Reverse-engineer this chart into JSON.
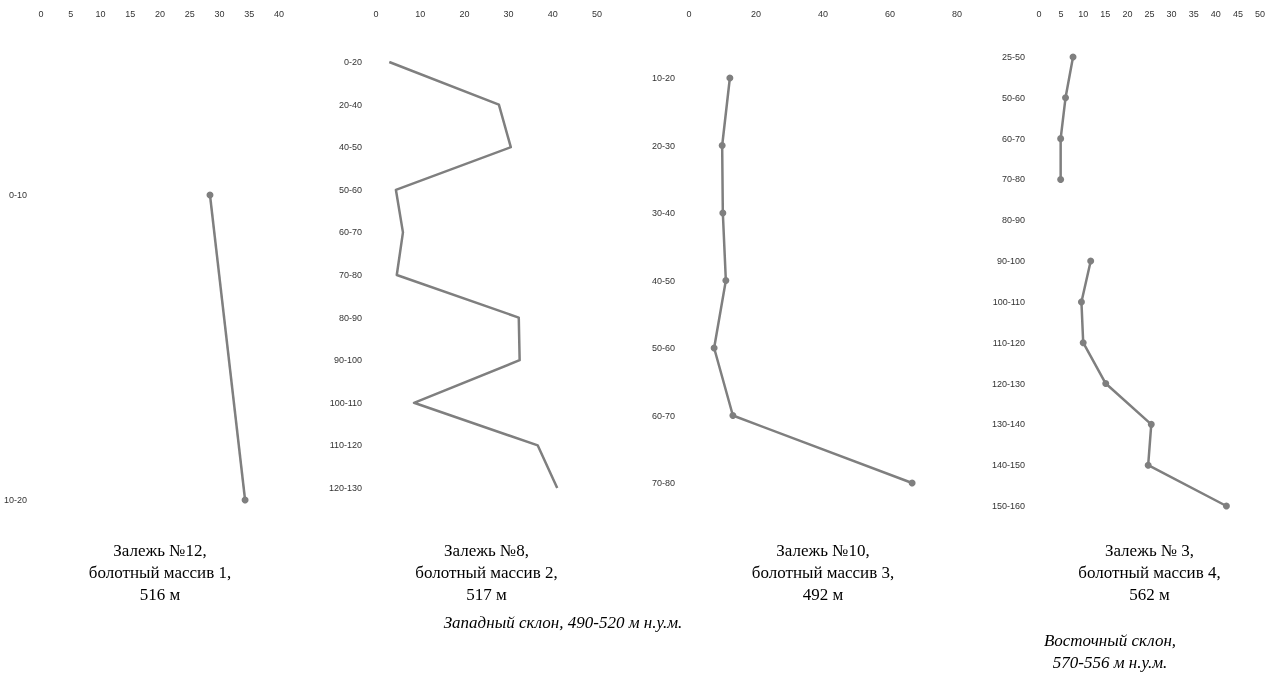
{
  "chart_data": [
    {
      "type": "line",
      "orientation": "horizontal",
      "categories": [
        "0-10",
        "10-20"
      ],
      "values": [
        28.4,
        34.3
      ],
      "color": "#7f7f7f",
      "marker": "circle",
      "xlim": [
        0,
        40
      ],
      "xticks": [
        0,
        5,
        10,
        15,
        20,
        25,
        30,
        35,
        40
      ],
      "xlabel": "Залежь №12,\nболотный массив 1,\n516 м"
    },
    {
      "type": "line",
      "orientation": "horizontal",
      "categories": [
        "0-20",
        "20-40",
        "40-50",
        "50-60",
        "60-70",
        "70-80",
        "80-90",
        "90-100",
        "100-110",
        "110-120",
        "120-130"
      ],
      "values": [
        3,
        27.8,
        30.5,
        4.5,
        6.1,
        4.7,
        32.3,
        32.5,
        8.6,
        36.6,
        41
      ],
      "color": "#7f7f7f",
      "marker": "none",
      "xlim": [
        0,
        50
      ],
      "xticks": [
        0,
        10,
        20,
        30,
        40,
        50
      ],
      "xlabel": "Залежь №8,\nболотный массив 2,\n517 м",
      "annotations": [
        "Западный склон, 490-520 м н.у.м."
      ]
    },
    {
      "type": "line",
      "orientation": "horizontal",
      "categories": [
        "10-20",
        "20-30",
        "30-40",
        "40-50",
        "50-60",
        "60-70",
        "70-80"
      ],
      "values": [
        12.2,
        9.9,
        10.1,
        11,
        7.5,
        13.1,
        66.6
      ],
      "color": "#7f7f7f",
      "marker": "circle",
      "xlim": [
        0,
        80
      ],
      "xticks": [
        0,
        20,
        40,
        60,
        80
      ],
      "xlabel": "Залежь №10,\nболотный массив 3,\n492 м"
    },
    {
      "type": "line",
      "orientation": "horizontal",
      "categories": [
        "25-50",
        "50-60",
        "60-70",
        "70-80",
        "80-90",
        "90-100",
        "100-110",
        "110-120",
        "120-130",
        "130-140",
        "140-150",
        "150-160"
      ],
      "values": [
        7.7,
        6.0,
        4.9,
        4.9,
        null,
        11.7,
        9.6,
        10.0,
        15.1,
        25.4,
        24.7,
        42.4
      ],
      "color": "#7f7f7f",
      "marker": "circle",
      "xlim": [
        0,
        50
      ],
      "xticks": [
        0,
        5,
        10,
        15,
        20,
        25,
        30,
        35,
        40,
        45,
        50
      ],
      "xlabel": "Залежь № 3,\nболотный массив 4,\n562 м",
      "annotations": [
        "Восточный склон,\n570-556 м н.у.м."
      ]
    }
  ]
}
